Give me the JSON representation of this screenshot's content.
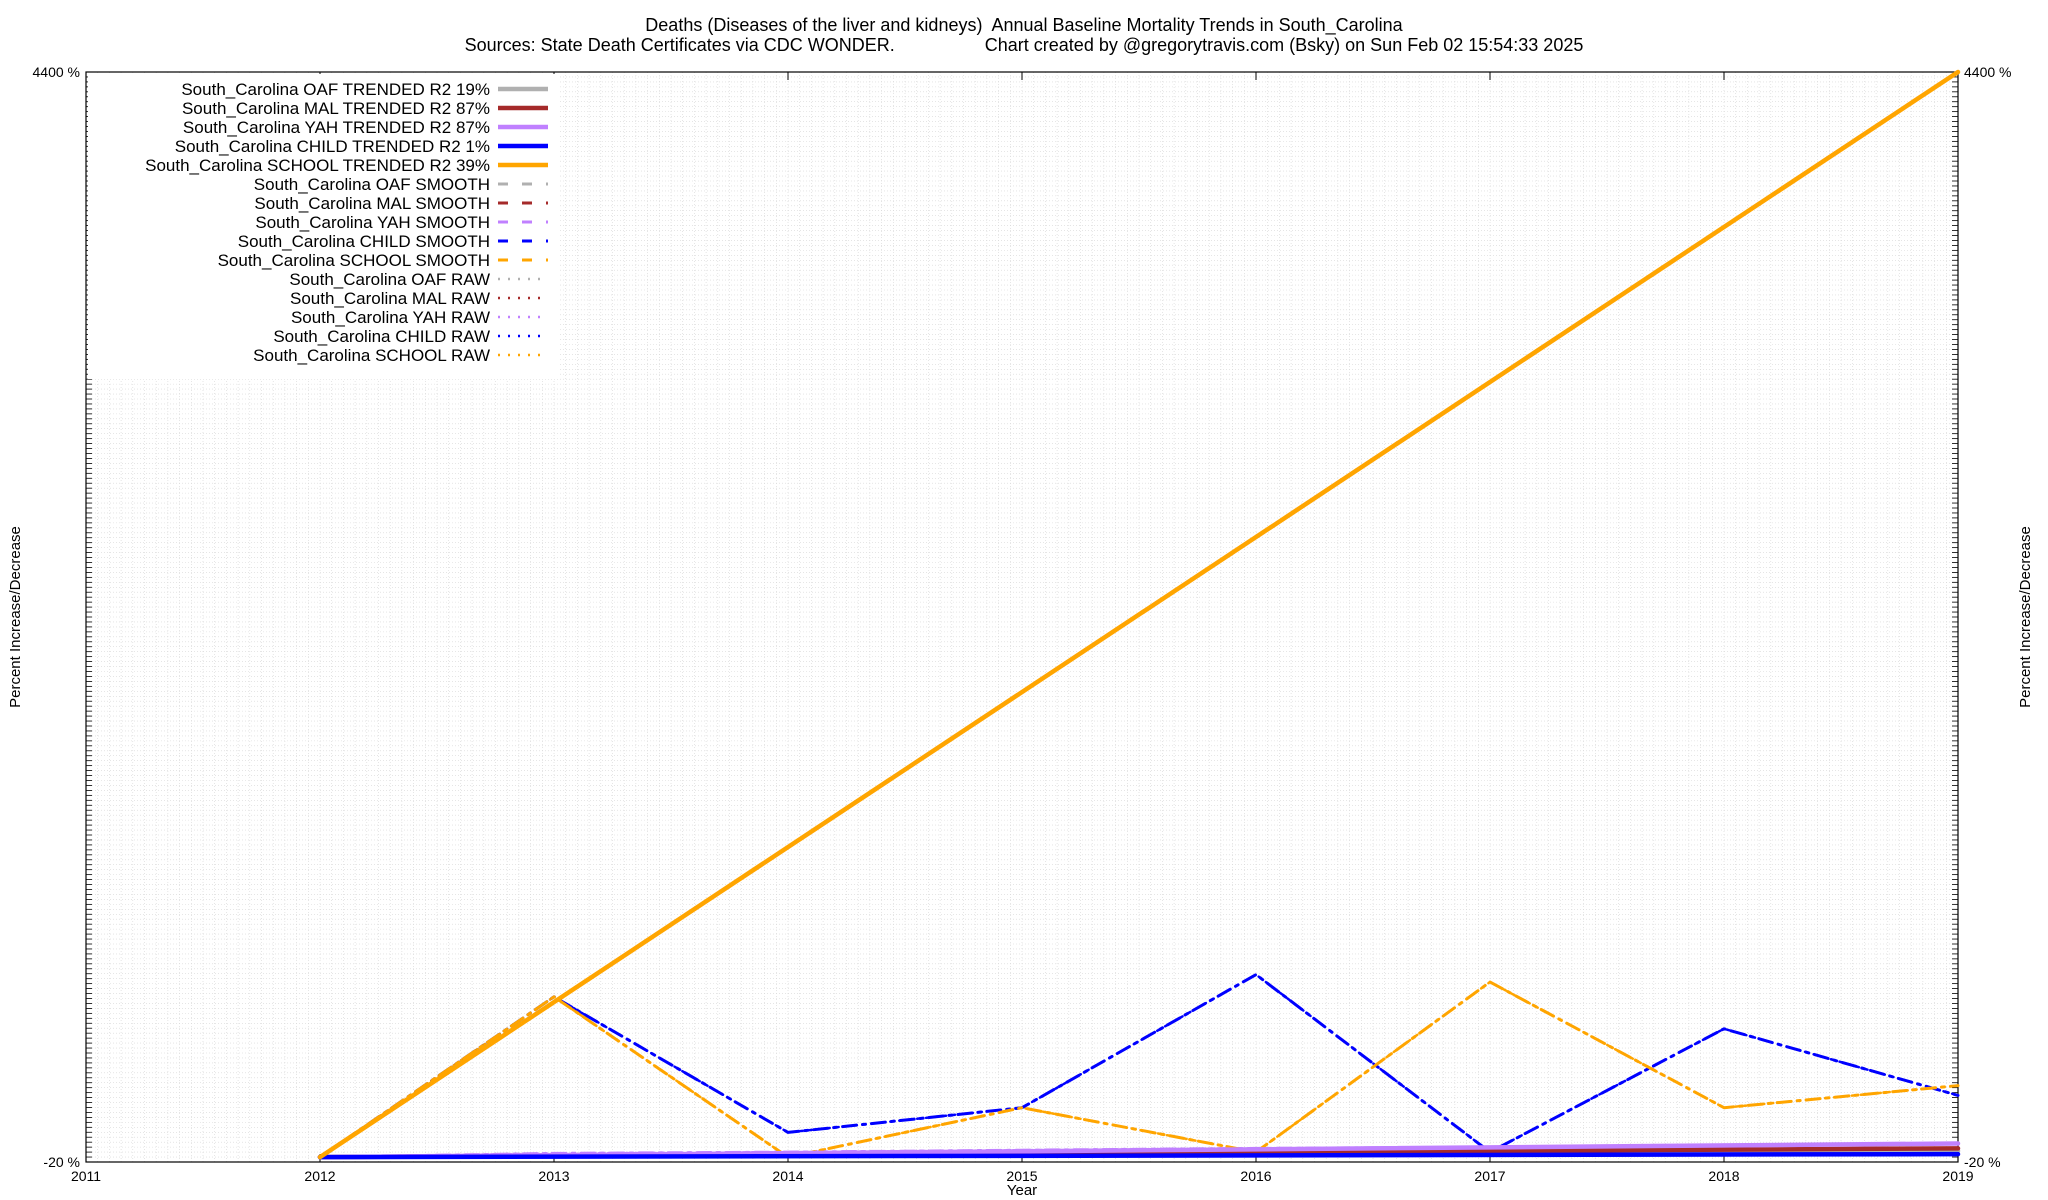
{
  "chart_data": {
    "type": "line",
    "title": "Deaths (Diseases of the liver and kidneys)  Annual Baseline Mortality Trends in South_Carolina",
    "subtitle": "Sources: State Death Certificates via CDC WONDER.                  Chart created by @gregorytravis.com (Bsky) on Sun Feb 02 15:54:33 2025",
    "xlabel": "Year",
    "ylabel": "Percent Increase/Decrease",
    "xlim": [
      2011,
      2019
    ],
    "ylim": [
      -20,
      4400
    ],
    "x_ticks": [
      2011,
      2012,
      2013,
      2014,
      2015,
      2016,
      2017,
      2018,
      2019
    ],
    "y_tick_labels": [
      "-20 %",
      "4400 %"
    ],
    "grid": true,
    "legend_position": "top-left",
    "series": [
      {
        "name": "South_Carolina OAF TRENDED R2  19%",
        "style": "trended",
        "color": "#b0b0b0",
        "x": [
          2012,
          2019
        ],
        "y": [
          0,
          25
        ]
      },
      {
        "name": "South_Carolina MAL TRENDED R2  87%",
        "style": "trended",
        "color": "#a52a2a",
        "x": [
          2012,
          2019
        ],
        "y": [
          0,
          35
        ]
      },
      {
        "name": "South_Carolina YAH TRENDED R2  87%",
        "style": "trended",
        "color": "#c080ff",
        "x": [
          2012,
          2019
        ],
        "y": [
          0,
          55
        ]
      },
      {
        "name": "South_Carolina CHILD TRENDED R2   1%",
        "style": "trended",
        "color": "#0000ff",
        "x": [
          2012,
          2019
        ],
        "y": [
          0,
          12
        ]
      },
      {
        "name": "South_Carolina SCHOOL TRENDED R2  39%",
        "style": "trended",
        "color": "#ffa500",
        "x": [
          2012,
          2019
        ],
        "y": [
          0,
          4400
        ]
      },
      {
        "name": "South_Carolina OAF SMOOTH",
        "style": "smooth",
        "color": "#b0b0b0",
        "x": [
          2012,
          2013,
          2014,
          2015,
          2016,
          2017,
          2018,
          2019
        ],
        "y": [
          0,
          5,
          8,
          10,
          12,
          15,
          18,
          20
        ]
      },
      {
        "name": "South_Carolina MAL SMOOTH",
        "style": "smooth",
        "color": "#a52a2a",
        "x": [
          2012,
          2013,
          2014,
          2015,
          2016,
          2017,
          2018,
          2019
        ],
        "y": [
          0,
          10,
          14,
          18,
          22,
          26,
          30,
          34
        ]
      },
      {
        "name": "South_Carolina YAH SMOOTH",
        "style": "smooth",
        "color": "#c080ff",
        "x": [
          2012,
          2013,
          2014,
          2015,
          2016,
          2017,
          2018,
          2019
        ],
        "y": [
          0,
          15,
          20,
          28,
          35,
          40,
          48,
          55
        ]
      },
      {
        "name": "South_Carolina CHILD SMOOTH",
        "style": "smooth",
        "color": "#0000ff",
        "x": [
          2012,
          2013,
          2014,
          2015,
          2016,
          2017,
          2018,
          2019
        ],
        "y": [
          0,
          650,
          100,
          200,
          740,
          20,
          520,
          250
        ]
      },
      {
        "name": "South_Carolina SCHOOL SMOOTH",
        "style": "smooth",
        "color": "#ffa500",
        "x": [
          2012,
          2013,
          2014,
          2015,
          2016,
          2017,
          2018,
          2019
        ],
        "y": [
          0,
          650,
          0,
          200,
          20,
          710,
          200,
          290
        ]
      },
      {
        "name": "South_Carolina OAF RAW",
        "style": "raw",
        "color": "#b0b0b0",
        "x": [
          2012,
          2013,
          2014,
          2015,
          2016,
          2017,
          2018,
          2019
        ],
        "y": [
          0,
          5,
          8,
          10,
          12,
          15,
          18,
          20
        ]
      },
      {
        "name": "South_Carolina MAL RAW",
        "style": "raw",
        "color": "#a52a2a",
        "x": [
          2012,
          2013,
          2014,
          2015,
          2016,
          2017,
          2018,
          2019
        ],
        "y": [
          0,
          10,
          14,
          18,
          22,
          26,
          30,
          34
        ]
      },
      {
        "name": "South_Carolina YAH RAW",
        "style": "raw",
        "color": "#c080ff",
        "x": [
          2012,
          2013,
          2014,
          2015,
          2016,
          2017,
          2018,
          2019
        ],
        "y": [
          0,
          15,
          20,
          28,
          35,
          40,
          48,
          55
        ]
      },
      {
        "name": "South_Carolina CHILD RAW",
        "style": "raw",
        "color": "#0000ff",
        "x": [
          2012,
          2013,
          2014,
          2015,
          2016,
          2017,
          2018,
          2019
        ],
        "y": [
          0,
          650,
          100,
          200,
          740,
          20,
          520,
          250
        ]
      },
      {
        "name": "South_Carolina SCHOOL RAW",
        "style": "raw",
        "color": "#ffa500",
        "x": [
          2012,
          2013,
          2014,
          2015,
          2016,
          2017,
          2018,
          2019
        ],
        "y": [
          0,
          650,
          0,
          200,
          20,
          710,
          200,
          290
        ]
      }
    ]
  }
}
